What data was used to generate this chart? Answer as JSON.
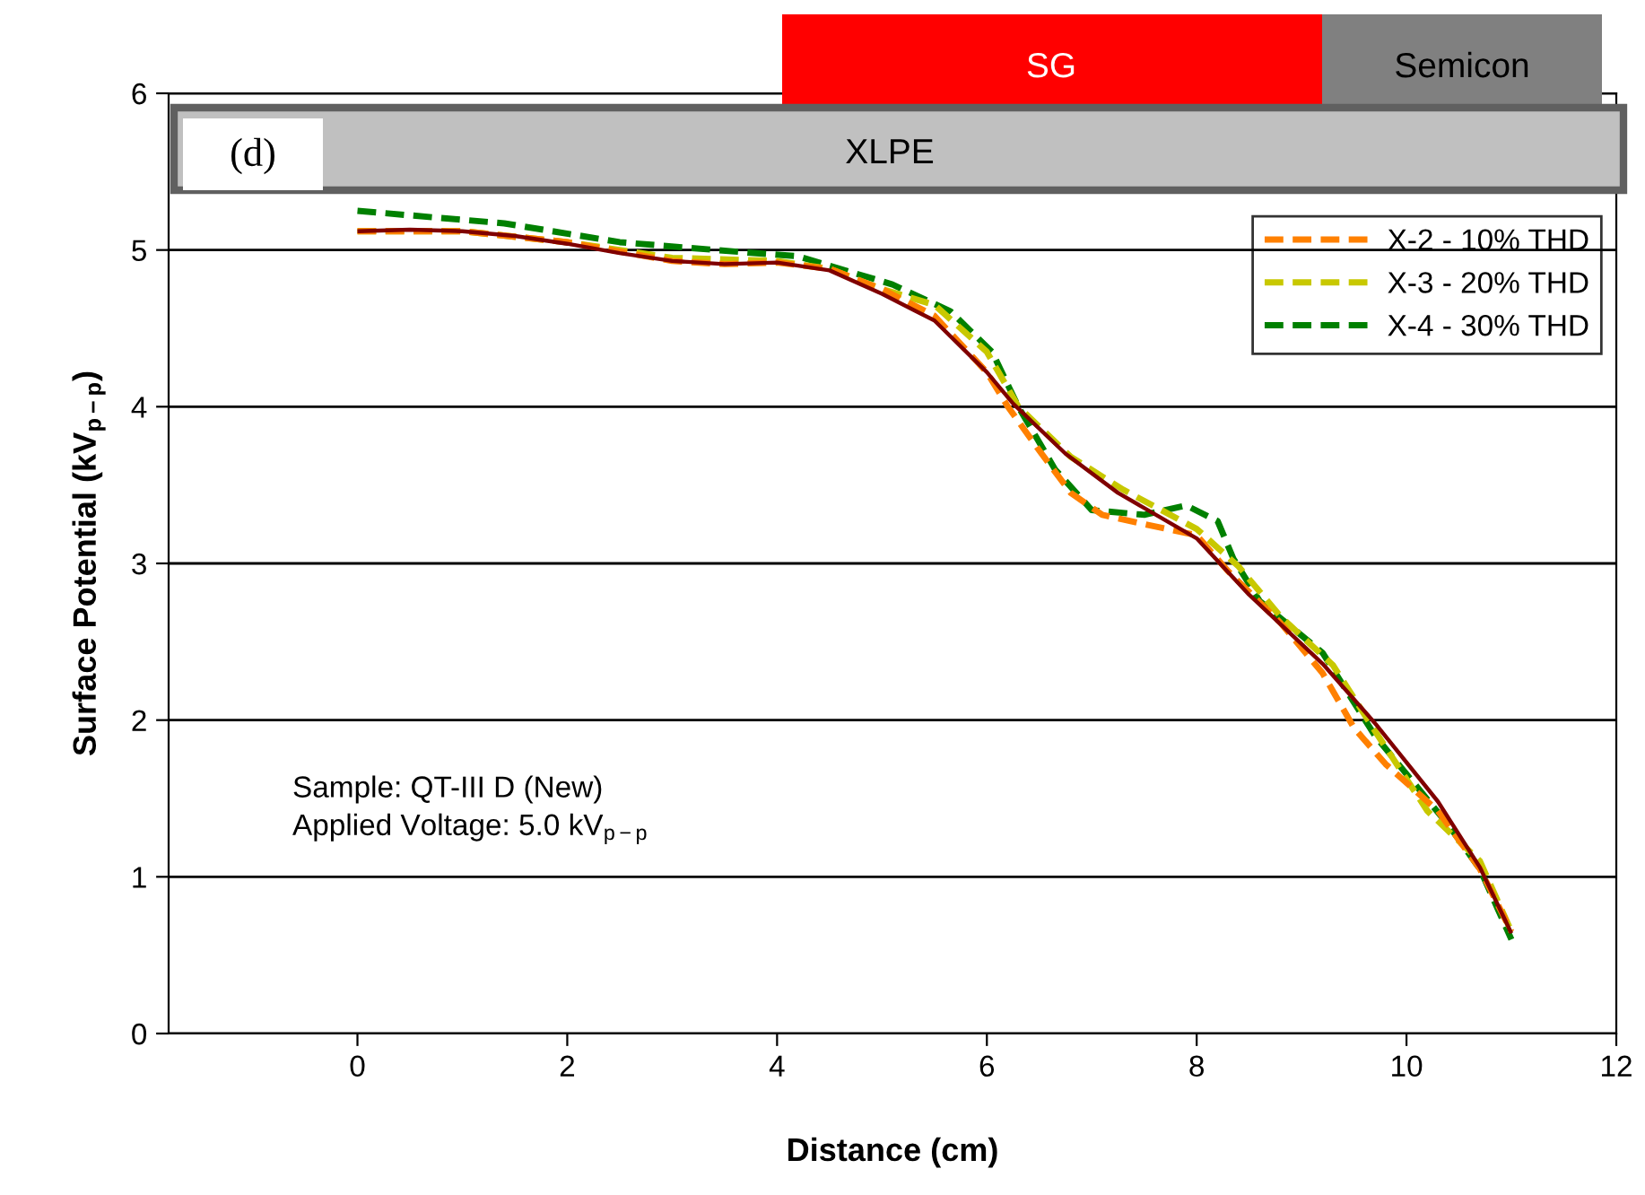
{
  "chart_data": {
    "type": "line",
    "xlabel": "Distance (cm)",
    "ylabel": "Surface Potential (kV$_{p−p}$)",
    "xlim": [
      -1.8,
      12
    ],
    "xticks": [
      0,
      2,
      4,
      6,
      8,
      10,
      12
    ],
    "ylim": [
      0,
      6
    ],
    "yticks": [
      0,
      1,
      2,
      3,
      4,
      5,
      6
    ],
    "grid": "y",
    "legend": "top right",
    "marker": "none",
    "annotations": [
      "Sample: QT-III D (New)",
      "Applied Voltage: 5.0 kV$_{p−p}$",
      "SG",
      "Semicon",
      "XLPE",
      "(d)"
    ],
    "series": [
      {
        "color": "#800000",
        "line_style": "solid",
        "x": [
          0,
          0.5,
          1,
          1.5,
          2,
          2.5,
          3,
          3.5,
          4,
          4.5,
          5,
          5.5,
          6,
          6.25,
          6.75,
          7.25,
          8,
          8.5,
          9.2,
          9.7,
          10.3,
          10.7,
          11
        ],
        "values": [
          5.12,
          5.13,
          5.12,
          5.09,
          5.04,
          4.98,
          4.93,
          4.91,
          4.92,
          4.87,
          4.72,
          4.55,
          4.22,
          4.02,
          3.7,
          3.45,
          3.16,
          2.8,
          2.36,
          1.98,
          1.48,
          1.06,
          0.64
        ]
      },
      {
        "name": "X-2 - 10% THD",
        "color": "#ff8000",
        "line_style": "dashed",
        "x": [
          0,
          1,
          2,
          2.5,
          3,
          3.5,
          4,
          4.5,
          5,
          5.5,
          6,
          6.2,
          6.5,
          6.8,
          7.1,
          7.5,
          8,
          8.3,
          8.8,
          9.2,
          9.5,
          9.8,
          10.3,
          10.7,
          11
        ],
        "values": [
          5.12,
          5.12,
          5.05,
          4.99,
          4.93,
          4.91,
          4.92,
          4.88,
          4.75,
          4.58,
          4.22,
          4.0,
          3.72,
          3.45,
          3.31,
          3.25,
          3.18,
          2.95,
          2.62,
          2.3,
          1.95,
          1.72,
          1.42,
          1.05,
          0.65
        ]
      },
      {
        "name": "X-3 - 20% THD",
        "color": "#c8c800",
        "line_style": "dashed",
        "x": [
          0,
          1,
          2,
          3,
          4,
          4.5,
          5,
          5.5,
          6,
          6.3,
          6.8,
          7.3,
          8,
          8.4,
          8.8,
          9.3,
          9.7,
          10.2,
          10.7,
          11
        ],
        "values": [
          5.12,
          5.12,
          5.05,
          4.95,
          4.93,
          4.88,
          4.75,
          4.65,
          4.35,
          4.0,
          3.68,
          3.47,
          3.22,
          2.98,
          2.66,
          2.35,
          1.93,
          1.42,
          1.1,
          0.65
        ]
      },
      {
        "name": "X-4 - 30% THD",
        "color": "#008000",
        "line_style": "dashed",
        "x": [
          0,
          1.4,
          2.5,
          3.6,
          4.2,
          5.1,
          5.65,
          6.05,
          6.3,
          6.65,
          7,
          7.5,
          7.9,
          8.2,
          8.35,
          8.6,
          9.2,
          9.7,
          10.4,
          10.7,
          11
        ],
        "values": [
          5.25,
          5.17,
          5.05,
          4.99,
          4.96,
          4.78,
          4.61,
          4.35,
          4.0,
          3.6,
          3.34,
          3.31,
          3.37,
          3.27,
          3.03,
          2.76,
          2.43,
          1.9,
          1.33,
          1.05,
          0.6
        ]
      }
    ]
  }
}
